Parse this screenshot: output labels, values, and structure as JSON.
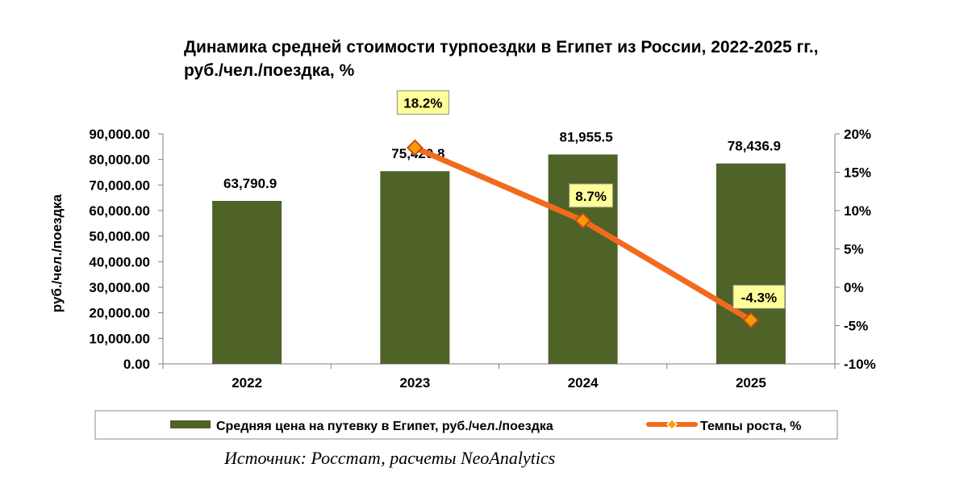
{
  "title_line1": "Динамика средней стоимости турпоездки в Египет из России, 2022-2025 гг.,",
  "title_line2": "руб./чел./поездка, %",
  "source": "Источник: Росстат, расчеты NeoAnalytics",
  "chart_data": {
    "type": "bar+line",
    "categories": [
      "2022",
      "2023",
      "2024",
      "2025"
    ],
    "series": [
      {
        "name": "Средняя цена на путевку в Египет, руб./чел./поездка",
        "type": "bar",
        "axis": "left",
        "color": "#4f6228",
        "values": [
          63790.9,
          75420.8,
          81955.5,
          78436.9
        ],
        "labels": [
          "63,790.9",
          "75,420.8",
          "81,955.5",
          "78,436.9"
        ]
      },
      {
        "name": "Темпы роста, %",
        "type": "line",
        "axis": "right",
        "color": "#f26b1d",
        "marker_color": "#ff9900",
        "values": [
          null,
          18.2,
          8.7,
          -4.3
        ],
        "labels": [
          null,
          "18.2%",
          "8.7%",
          "-4.3%"
        ]
      }
    ],
    "y_left": {
      "label": "руб./чел./поездка",
      "min": 0,
      "max": 90000,
      "step": 10000,
      "ticks": [
        "0.00",
        "10,000.00",
        "20,000.00",
        "30,000.00",
        "40,000.00",
        "50,000.00",
        "60,000.00",
        "70,000.00",
        "80,000.00",
        "90,000.00"
      ]
    },
    "y_right": {
      "min": -10,
      "max": 20,
      "step": 5,
      "ticks": [
        "-10%",
        "-5%",
        "0%",
        "5%",
        "10%",
        "15%",
        "20%"
      ]
    },
    "legend_position": "bottom",
    "grid": false
  }
}
